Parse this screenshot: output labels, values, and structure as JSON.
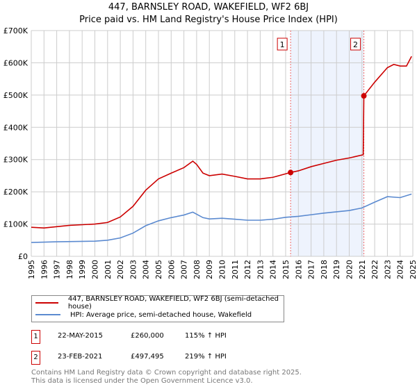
{
  "chart_data": {
    "type": "line",
    "title": "447, BARNSLEY ROAD, WAKEFIELD, WF2 6BJ",
    "subtitle": "Price paid vs. HM Land Registry's House Price Index (HPI)",
    "xlim": [
      1995,
      2025
    ],
    "ylim": [
      0,
      700000
    ],
    "yticks": [
      0,
      100000,
      200000,
      300000,
      400000,
      500000,
      600000,
      700000
    ],
    "ytick_labels": [
      "£0",
      "£100K",
      "£200K",
      "£300K",
      "£400K",
      "£500K",
      "£600K",
      "£700K"
    ],
    "xtick_labels": [
      "1995",
      "1996",
      "1997",
      "1998",
      "1999",
      "2000",
      "2001",
      "2002",
      "2003",
      "2004",
      "2005",
      "2006",
      "2007",
      "2008",
      "2009",
      "2010",
      "2011",
      "2012",
      "2013",
      "2014",
      "2015",
      "2016",
      "2017",
      "2018",
      "2019",
      "2020",
      "2021",
      "2022",
      "2023",
      "2024",
      "2025"
    ],
    "grid": true,
    "series": [
      {
        "name": "447, BARNSLEY ROAD, WAKEFIELD, WF2 6BJ (semi-detached house)",
        "color": "#cc0000",
        "x": [
          1995,
          1996,
          1997,
          1998,
          1999,
          2000,
          2001,
          2002,
          2003,
          2004,
          2005,
          2006,
          2007,
          2007.7,
          2008,
          2008.5,
          2009,
          2010,
          2011,
          2012,
          2013,
          2014,
          2015.39,
          2016,
          2017,
          2018,
          2019,
          2020,
          2021.1,
          2021.15,
          2022,
          2023,
          2023.5,
          2024,
          2024.5,
          2024.9
        ],
        "y": [
          90000,
          88000,
          92000,
          96000,
          98000,
          100000,
          105000,
          122000,
          155000,
          205000,
          240000,
          258000,
          275000,
          295000,
          285000,
          258000,
          250000,
          255000,
          248000,
          240000,
          240000,
          245000,
          260000,
          265000,
          278000,
          288000,
          298000,
          305000,
          315000,
          497495,
          540000,
          585000,
          595000,
          590000,
          590000,
          620000
        ]
      },
      {
        "name": "HPI: Average price, semi-detached house, Wakefield",
        "color": "#5b8ad0",
        "x": [
          1995,
          1997,
          2000,
          2001,
          2002,
          2003,
          2004,
          2005,
          2006,
          2007,
          2007.7,
          2008.5,
          2009,
          2010,
          2011,
          2012,
          2013,
          2014,
          2015,
          2016,
          2017,
          2018,
          2019,
          2020,
          2021,
          2022,
          2023,
          2024,
          2024.9
        ],
        "y": [
          43000,
          45000,
          47000,
          50000,
          57000,
          72000,
          95000,
          110000,
          120000,
          128000,
          137000,
          120000,
          116000,
          118000,
          115000,
          112000,
          112000,
          115000,
          121000,
          124000,
          129000,
          134000,
          138000,
          142000,
          150000,
          168000,
          185000,
          182000,
          193000
        ]
      }
    ],
    "sales": [
      {
        "num": "1",
        "x": 2015.39,
        "date": "22-MAY-2015",
        "price_value": 260000,
        "price": "£260,000",
        "hpi": "115% ↑ HPI"
      },
      {
        "num": "2",
        "x": 2021.15,
        "date": "23-FEB-2021",
        "price_value": 497495,
        "price": "£497,495",
        "hpi": "219% ↑ HPI"
      }
    ]
  },
  "footer": {
    "line1": "Contains HM Land Registry data © Crown copyright and database right 2025.",
    "line2": "This data is licensed under the Open Government Licence v3.0."
  }
}
